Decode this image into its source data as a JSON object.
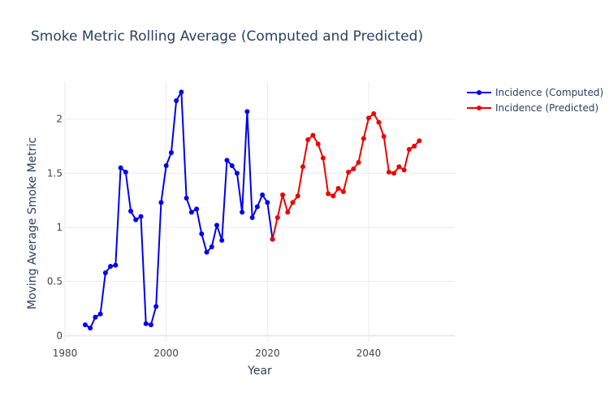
{
  "chart_data": {
    "type": "line",
    "title": "Smoke Metric Rolling Average (Computed and Predicted)",
    "xlabel": "Year",
    "ylabel": "Moving Average Smoke Metric",
    "xlim": [
      1980,
      2057
    ],
    "ylim": [
      -0.05,
      2.35
    ],
    "x_ticks": [
      1980,
      2000,
      2020,
      2040
    ],
    "y_ticks": [
      0,
      0.5,
      1,
      1.5,
      2
    ],
    "y_tick_labels": [
      "0",
      "0.5",
      "1",
      "1.5",
      "2"
    ],
    "grid": true,
    "legend_position": "top-right",
    "series": [
      {
        "name": "Incidence (Computed)",
        "color": "#0000ee",
        "x": [
          1984,
          1985,
          1986,
          1987,
          1988,
          1989,
          1990,
          1991,
          1992,
          1993,
          1994,
          1995,
          1996,
          1997,
          1998,
          1999,
          2000,
          2001,
          2002,
          2003,
          2004,
          2005,
          2006,
          2007,
          2008,
          2009,
          2010,
          2011,
          2012,
          2013,
          2014,
          2015,
          2016,
          2017,
          2018,
          2019,
          2020,
          2021
        ],
        "y": [
          0.1,
          0.07,
          0.17,
          0.2,
          0.58,
          0.64,
          0.65,
          1.55,
          1.51,
          1.15,
          1.07,
          1.1,
          0.11,
          0.1,
          0.27,
          1.23,
          1.57,
          1.69,
          2.17,
          2.25,
          1.27,
          1.14,
          1.17,
          0.94,
          0.77,
          0.82,
          1.02,
          0.88,
          1.62,
          1.57,
          1.5,
          1.14,
          2.07,
          1.09,
          1.19,
          1.3,
          1.23,
          0.89
        ]
      },
      {
        "name": "Incidence (Predicted)",
        "color": "#ee0000",
        "x": [
          2021,
          2022,
          2023,
          2024,
          2025,
          2026,
          2027,
          2028,
          2029,
          2030,
          2031,
          2032,
          2033,
          2034,
          2035,
          2036,
          2037,
          2038,
          2039,
          2040,
          2041,
          2042,
          2043,
          2044,
          2045,
          2046,
          2047,
          2048,
          2049,
          2050
        ],
        "y": [
          0.89,
          1.09,
          1.3,
          1.14,
          1.23,
          1.29,
          1.56,
          1.81,
          1.85,
          1.77,
          1.64,
          1.31,
          1.29,
          1.36,
          1.33,
          1.51,
          1.54,
          1.6,
          1.82,
          2.01,
          2.05,
          1.97,
          1.84,
          1.51,
          1.5,
          1.56,
          1.53,
          1.72,
          1.75,
          1.8
        ]
      }
    ]
  }
}
